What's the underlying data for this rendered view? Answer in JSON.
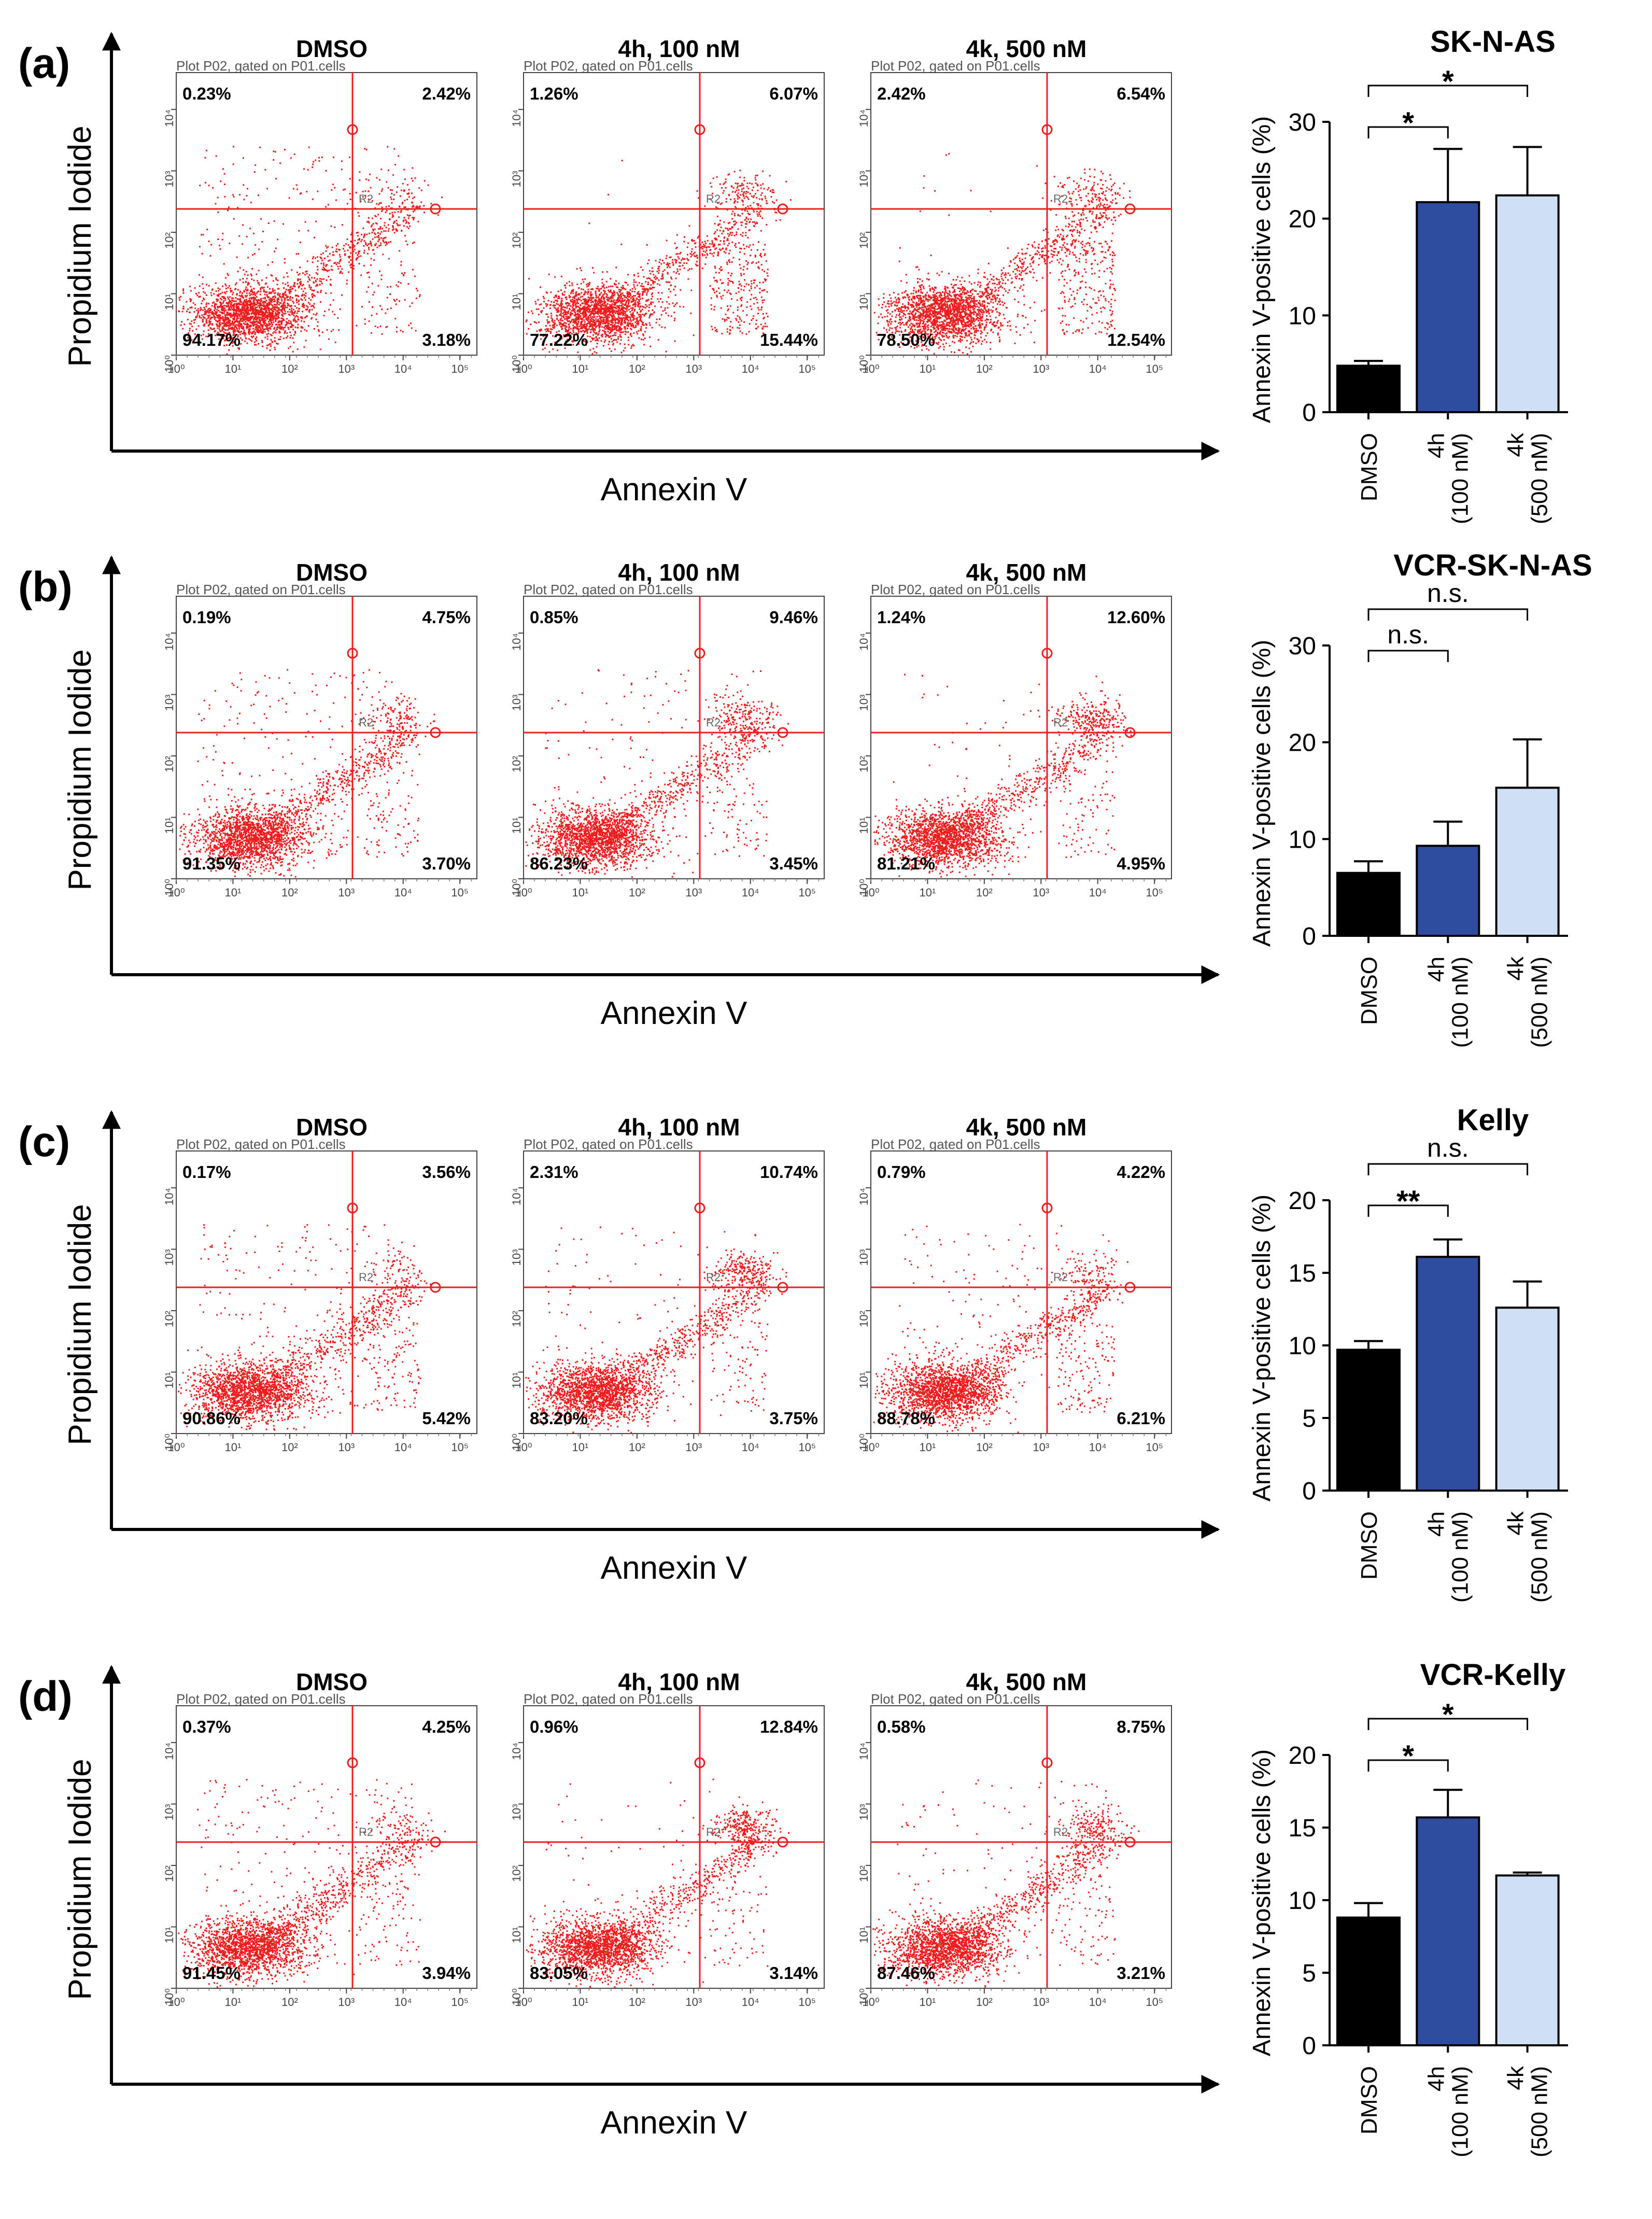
{
  "figure": {
    "x_axis_label": "Annexin V",
    "y_axis_label": "Propidium Iodide",
    "bar_ylabel": "Annexin V-positive cells (%)",
    "plot_header": "Plot P02, gated on P01.cells",
    "gate_label": "R2",
    "columns": [
      "DMSO",
      "4h, 100 nM",
      "4k, 500 nM"
    ],
    "bar_categories": [
      [
        "DMSO"
      ],
      [
        "4h",
        "(100 nM)"
      ],
      [
        "4k",
        "(500 nM)"
      ]
    ],
    "bar_colors": [
      "#000000",
      "#2e4d9e",
      "#cfe0f4"
    ],
    "dot_color": "#ee1c1c",
    "flow_ticks": [
      "10⁰",
      "10¹",
      "10²",
      "10³",
      "10⁴",
      "10⁵"
    ]
  },
  "panels": [
    {
      "label": "(a)",
      "flow": [
        {
          "UL": "0.23%",
          "UR": "2.42%",
          "LL": "94.17%",
          "LR": "3.18%"
        },
        {
          "UL": "1.26%",
          "UR": "6.07%",
          "LL": "77.22%",
          "LR": "15.44%"
        },
        {
          "UL": "2.42%",
          "UR": "6.54%",
          "LL": "78.50%",
          "LR": "12.54%"
        }
      ]
    },
    {
      "label": "(b)",
      "flow": [
        {
          "UL": "0.19%",
          "UR": "4.75%",
          "LL": "91.35%",
          "LR": "3.70%"
        },
        {
          "UL": "0.85%",
          "UR": "9.46%",
          "LL": "86.23%",
          "LR": "3.45%"
        },
        {
          "UL": "1.24%",
          "UR": "12.60%",
          "LL": "81.21%",
          "LR": "4.95%"
        }
      ]
    },
    {
      "label": "(c)",
      "flow": [
        {
          "UL": "0.17%",
          "UR": "3.56%",
          "LL": "90.86%",
          "LR": "5.42%"
        },
        {
          "UL": "2.31%",
          "UR": "10.74%",
          "LL": "83.20%",
          "LR": "3.75%"
        },
        {
          "UL": "0.79%",
          "UR": "4.22%",
          "LL": "88.78%",
          "LR": "6.21%"
        }
      ]
    },
    {
      "label": "(d)",
      "flow": [
        {
          "UL": "0.37%",
          "UR": "4.25%",
          "LL": "91.45%",
          "LR": "3.94%"
        },
        {
          "UL": "0.96%",
          "UR": "12.84%",
          "LL": "83.05%",
          "LR": "3.14%"
        },
        {
          "UL": "0.58%",
          "UR": "8.75%",
          "LL": "87.46%",
          "LR": "3.21%"
        }
      ]
    }
  ],
  "chart_data": [
    {
      "type": "bar",
      "title": "SK-N-AS",
      "categories": [
        "DMSO",
        "4h (100 nM)",
        "4k (500 nM)"
      ],
      "values": [
        4.8,
        21.7,
        22.4
      ],
      "errors": [
        0.5,
        5.5,
        5.0
      ],
      "ylabel": "Annexin V-positive cells (%)",
      "ylim": [
        0,
        30
      ],
      "yticks": [
        0,
        10,
        20,
        30
      ],
      "significance": [
        {
          "from": 0,
          "to": 1,
          "label": "*"
        },
        {
          "from": 0,
          "to": 2,
          "label": "*"
        }
      ]
    },
    {
      "type": "bar",
      "title": "VCR-SK-N-AS",
      "categories": [
        "DMSO",
        "4h (100 nM)",
        "4k (500 nM)"
      ],
      "values": [
        6.5,
        9.3,
        15.3
      ],
      "errors": [
        1.2,
        2.5,
        5.0
      ],
      "ylabel": "Annexin V-positive cells (%)",
      "ylim": [
        0,
        30
      ],
      "yticks": [
        0,
        10,
        20,
        30
      ],
      "significance": [
        {
          "from": 0,
          "to": 1,
          "label": "n.s."
        },
        {
          "from": 0,
          "to": 2,
          "label": "n.s."
        }
      ]
    },
    {
      "type": "bar",
      "title": "Kelly",
      "categories": [
        "DMSO",
        "4h (100 nM)",
        "4k (500 nM)"
      ],
      "values": [
        9.7,
        16.1,
        12.6
      ],
      "errors": [
        0.6,
        1.2,
        1.8
      ],
      "ylabel": "Annexin V-positive cells (%)",
      "ylim": [
        0,
        20
      ],
      "yticks": [
        0,
        5,
        10,
        15,
        20
      ],
      "significance": [
        {
          "from": 0,
          "to": 1,
          "label": "**"
        },
        {
          "from": 0,
          "to": 2,
          "label": "n.s."
        }
      ]
    },
    {
      "type": "bar",
      "title": "VCR-Kelly",
      "categories": [
        "DMSO",
        "4h (100 nM)",
        "4k (500 nM)"
      ],
      "values": [
        8.8,
        15.7,
        11.7
      ],
      "errors": [
        1.0,
        1.9,
        0.2
      ],
      "ylabel": "Annexin V-positive cells (%)",
      "ylim": [
        0,
        20
      ],
      "yticks": [
        0,
        5,
        10,
        15,
        20
      ],
      "significance": [
        {
          "from": 0,
          "to": 1,
          "label": "*"
        },
        {
          "from": 0,
          "to": 2,
          "label": "*"
        }
      ]
    }
  ]
}
